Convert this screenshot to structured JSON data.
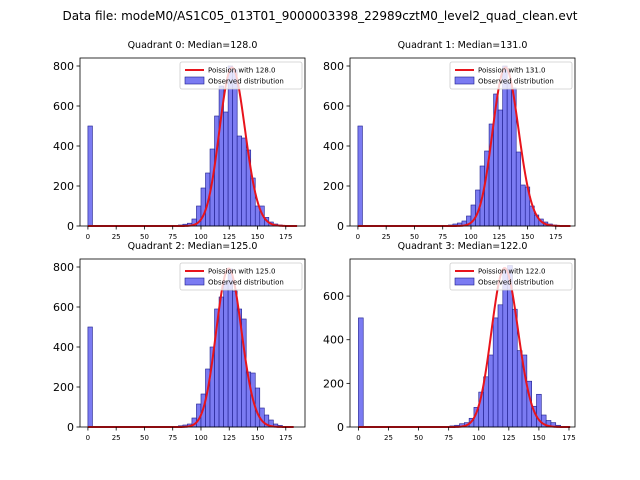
{
  "figure_title": "Data file: modeM0/AS1C05_013T01_9000003398_22989cztM0_level2_quad_clean.evt",
  "colors": {
    "bar_fill": "#7b7bf2",
    "bar_edge": "#1c1c8c",
    "poisson_line": "#e8141c",
    "axes": "#000000",
    "background": "#ffffff"
  },
  "chart_data": [
    {
      "type": "bar",
      "title": "Quadrant 0: Median=128.0",
      "median": 128,
      "xlim": [
        -7,
        192
      ],
      "ylim": [
        0,
        840
      ],
      "xticks": [
        0,
        25,
        50,
        75,
        100,
        125,
        150,
        175
      ],
      "yticks": [
        0,
        200,
        400,
        600,
        800
      ],
      "legend_position": "top-right",
      "legend": [
        "Poission with 128.0",
        "Observed distribution"
      ],
      "bin_width": 4,
      "series": [
        {
          "name": "Observed distribution",
          "x": [
            0,
            76,
            80,
            84,
            88,
            92,
            96,
            100,
            104,
            108,
            112,
            116,
            120,
            124,
            128,
            132,
            136,
            140,
            144,
            148,
            152,
            156,
            160,
            164,
            168,
            172
          ],
          "values": [
            500,
            2,
            5,
            9,
            14,
            35,
            100,
            190,
            265,
            385,
            550,
            700,
            570,
            800,
            780,
            450,
            440,
            380,
            240,
            100,
            100,
            43,
            20,
            10,
            5,
            2
          ]
        },
        {
          "name": "Poission with 128.0",
          "mean": 128,
          "scale": 792,
          "x_range": [
            0,
            185
          ]
        }
      ]
    },
    {
      "type": "bar",
      "title": "Quadrant 1: Median=131.0",
      "median": 131,
      "xlim": [
        -7,
        192
      ],
      "ylim": [
        0,
        840
      ],
      "xticks": [
        0,
        25,
        50,
        75,
        100,
        125,
        150,
        175
      ],
      "yticks": [
        0,
        200,
        400,
        600,
        800
      ],
      "legend_position": "top-right",
      "legend": [
        "Poission with 131.0",
        "Observed distribution"
      ],
      "bin_width": 4,
      "series": [
        {
          "name": "Observed distribution",
          "x": [
            0,
            76,
            80,
            84,
            88,
            92,
            96,
            100,
            104,
            108,
            112,
            116,
            120,
            124,
            128,
            132,
            136,
            140,
            144,
            148,
            152,
            156,
            160,
            164,
            168,
            172,
            176
          ],
          "values": [
            500,
            2,
            5,
            10,
            15,
            25,
            50,
            105,
            180,
            300,
            375,
            510,
            660,
            580,
            800,
            720,
            690,
            370,
            205,
            195,
            100,
            55,
            35,
            20,
            10,
            5,
            3
          ]
        },
        {
          "name": "Poission with 131.0",
          "mean": 131,
          "scale": 792,
          "x_range": [
            0,
            188
          ]
        }
      ]
    },
    {
      "type": "bar",
      "title": "Quadrant 2: Median=125.0",
      "median": 125,
      "xlim": [
        -7,
        192
      ],
      "ylim": [
        0,
        840
      ],
      "xticks": [
        0,
        25,
        50,
        75,
        100,
        125,
        150,
        175
      ],
      "yticks": [
        0,
        200,
        400,
        600,
        800
      ],
      "legend_position": "top-right",
      "legend": [
        "Poission with 125.0",
        "Observed distribution"
      ],
      "bin_width": 4,
      "series": [
        {
          "name": "Observed distribution",
          "x": [
            0,
            76,
            80,
            84,
            88,
            92,
            96,
            100,
            104,
            108,
            112,
            116,
            120,
            124,
            128,
            132,
            136,
            140,
            144,
            148,
            152,
            156,
            160,
            164,
            168,
            172
          ],
          "values": [
            500,
            3,
            6,
            10,
            15,
            45,
            115,
            165,
            290,
            400,
            590,
            650,
            730,
            790,
            680,
            590,
            540,
            275,
            270,
            195,
            95,
            60,
            35,
            15,
            8,
            3
          ]
        },
        {
          "name": "Poission with 125.0",
          "mean": 125,
          "scale": 792,
          "x_range": [
            0,
            182
          ]
        }
      ]
    },
    {
      "type": "bar",
      "title": "Quadrant 3: Median=122.0",
      "median": 122,
      "xlim": [
        -7,
        180
      ],
      "ylim": [
        0,
        770
      ],
      "xticks": [
        0,
        25,
        50,
        75,
        100,
        125,
        150,
        175
      ],
      "yticks": [
        0,
        200,
        400,
        600
      ],
      "legend_position": "top-right",
      "legend": [
        "Poission with 122.0",
        "Observed distribution"
      ],
      "bin_width": 4,
      "series": [
        {
          "name": "Observed distribution",
          "x": [
            0,
            72,
            76,
            80,
            84,
            88,
            92,
            96,
            100,
            104,
            108,
            112,
            116,
            120,
            124,
            128,
            132,
            136,
            140,
            144,
            148,
            152,
            156,
            160,
            164,
            168
          ],
          "values": [
            500,
            2,
            5,
            8,
            15,
            20,
            40,
            90,
            160,
            230,
            330,
            500,
            560,
            720,
            740,
            540,
            350,
            330,
            210,
            95,
            150,
            55,
            30,
            20,
            8,
            3
          ]
        },
        {
          "name": "Poission with 122.0",
          "mean": 122,
          "scale": 728,
          "x_range": [
            0,
            176
          ]
        }
      ]
    }
  ]
}
